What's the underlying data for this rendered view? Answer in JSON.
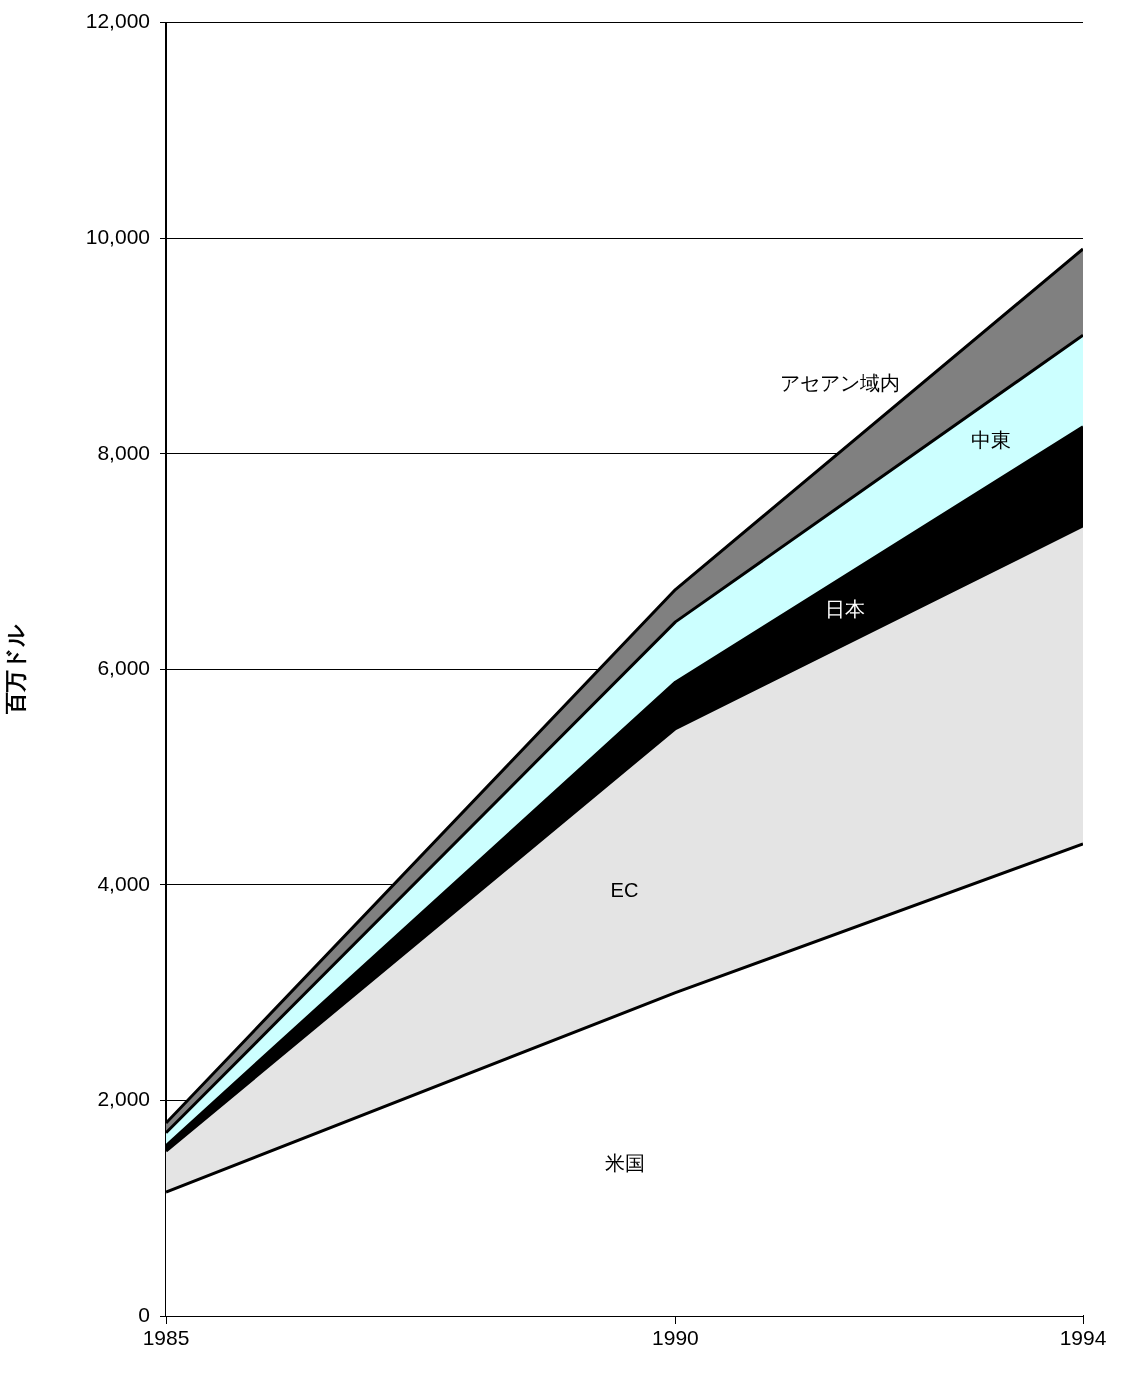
{
  "chart_data": {
    "type": "area",
    "ylabel": "百万ドル",
    "x": [
      1985,
      1990,
      1994
    ],
    "xlim": [
      1985,
      1994
    ],
    "xticks": [
      1985,
      1990,
      1994
    ],
    "ylim": [
      0,
      12000
    ],
    "yticks": [
      0,
      {
        "value": 2000,
        "label": "2,000"
      },
      {
        "value": 4000,
        "label": "4,000"
      },
      {
        "value": 6000,
        "label": "6,000"
      },
      {
        "value": 8000,
        "label": "8,000"
      },
      {
        "value": 10000,
        "label": "10,000"
      },
      {
        "value": 12000,
        "label": "12,000"
      }
    ],
    "stacked": true,
    "grid": "y",
    "legend": false,
    "series": [
      {
        "name": "米国",
        "color": "#ffffff",
        "values": [
          1150,
          3000,
          4380
        ]
      },
      {
        "name": "EC",
        "color": "#e4e4e4",
        "values": [
          380,
          2450,
          2950
        ]
      },
      {
        "name": "日本",
        "color": "#000000",
        "values": [
          50,
          430,
          920
        ]
      },
      {
        "name": "中東",
        "color": "#ccffff",
        "values": [
          120,
          560,
          850
        ]
      },
      {
        "name": "アセアン域内",
        "color": "#808080",
        "values": [
          90,
          300,
          800
        ]
      }
    ]
  }
}
